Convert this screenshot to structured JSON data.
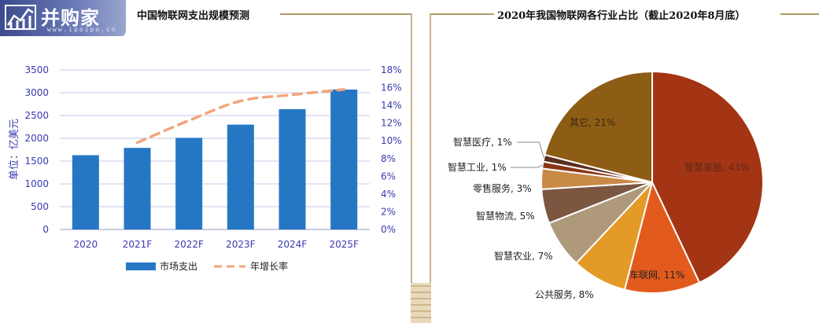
{
  "logo": {
    "text": "并购家",
    "sub": "www.ipoipo.cn"
  },
  "left_title": "中国物联网支出规模预测",
  "right_title": "2020年我国物联网各行业占比（截止2020年8月底）",
  "chart_data": [
    {
      "type": "bar",
      "categories": [
        "2020",
        "2021F",
        "2022F",
        "2023F",
        "2024F",
        "2025F"
      ],
      "series": [
        {
          "name": "市场支出",
          "kind": "bar",
          "axis": "left",
          "color": "#2577c4",
          "values": [
            1630,
            1790,
            2010,
            2300,
            2640,
            3070
          ]
        },
        {
          "name": "年增长率",
          "kind": "line",
          "axis": "right",
          "color": "#f2a57a",
          "values": [
            null,
            9.8,
            12.3,
            14.5,
            15.2,
            15.8
          ]
        }
      ],
      "ylabel": "单位：亿美元",
      "ylim": [
        0,
        3500
      ],
      "yticks": [
        "0",
        "500",
        "1000",
        "1500",
        "2000",
        "2500",
        "3000",
        "3500"
      ],
      "y2lim": [
        0,
        18
      ],
      "y2ticks": [
        "0%",
        "2%",
        "4%",
        "6%",
        "8%",
        "10%",
        "12%",
        "14%",
        "16%",
        "18%"
      ],
      "grid": true,
      "legend": "bottom"
    },
    {
      "type": "pie",
      "slices": [
        {
          "label": "智慧家居, 43%",
          "value": 43,
          "color": "#a33414"
        },
        {
          "label": "车联网, 11%",
          "value": 11,
          "color": "#e25b1c"
        },
        {
          "label": "公共服务, 8%",
          "value": 8,
          "color": "#e39a26"
        },
        {
          "label": "智慧农业, 7%",
          "value": 7,
          "color": "#ae9a7a"
        },
        {
          "label": "智慧物流, 5%",
          "value": 5,
          "color": "#7b5640"
        },
        {
          "label": "零售服务, 3%",
          "value": 3,
          "color": "#c88a46"
        },
        {
          "label": "智慧工业, 1%",
          "value": 1,
          "color": "#8a3414"
        },
        {
          "label": "智慧医疗, 1%",
          "value": 1,
          "color": "#5c2f1f"
        },
        {
          "label": "其它, 21%",
          "value": 21,
          "color": "#8d5c15"
        }
      ]
    }
  ]
}
